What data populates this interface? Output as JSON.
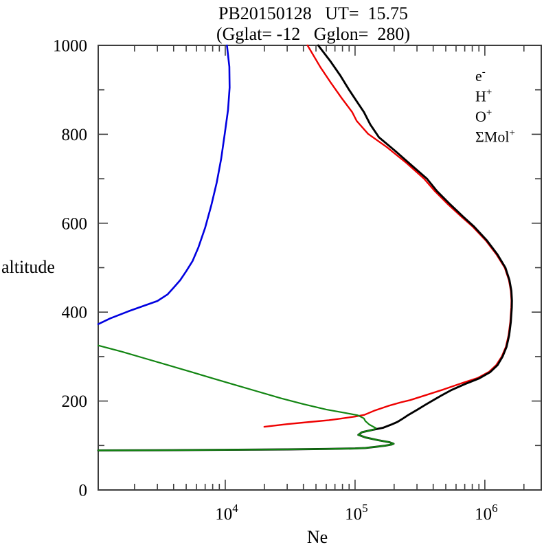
{
  "chart_data": {
    "type": "line",
    "title": "PB20150128   UT=  15.75",
    "subtitle": "(Gglat= -12   Gglon=  280)",
    "xlabel": "Ne",
    "ylabel": "altitude",
    "x_scale": "log",
    "xlim": [
      1050,
      2720000
    ],
    "ylim": [
      0,
      1000
    ],
    "grid": false,
    "frame_color": "#3c3c3c",
    "x_ticks": [
      {
        "v": 10000,
        "base": "10",
        "exp": "4"
      },
      {
        "v": 100000,
        "base": "10",
        "exp": "5"
      },
      {
        "v": 1000000,
        "base": "10",
        "exp": "6"
      }
    ],
    "y_ticks": [
      {
        "v": 0,
        "label": "0"
      },
      {
        "v": 200,
        "label": "200"
      },
      {
        "v": 400,
        "label": "400"
      },
      {
        "v": 600,
        "label": "600"
      },
      {
        "v": 800,
        "label": "800"
      },
      {
        "v": 1000,
        "label": "1000"
      }
    ],
    "y_minor_step": 100,
    "legend": {
      "position": "top-right",
      "entries": [
        {
          "id": "electron",
          "label": "e",
          "sup": "-",
          "color": "#000000"
        },
        {
          "id": "h-plus",
          "label": "H",
          "sup": "+",
          "color": "#0000e0"
        },
        {
          "id": "o-plus",
          "label": "O",
          "sup": "+",
          "color": "#ee0000"
        },
        {
          "id": "mol-ions",
          "label": "ΣMol",
          "sup": "+",
          "color": "#128512"
        }
      ]
    },
    "series": [
      {
        "id": "o-plus",
        "name": "O+",
        "color": "#ee0000",
        "width": 2.4,
        "points": [
          [
            20000,
            142
          ],
          [
            30000,
            148
          ],
          [
            45000,
            153
          ],
          [
            63000,
            157
          ],
          [
            80000,
            161
          ],
          [
            100000,
            165
          ],
          [
            118000,
            169
          ],
          [
            140000,
            178
          ],
          [
            180000,
            189
          ],
          [
            225000,
            197
          ],
          [
            265000,
            202
          ],
          [
            340000,
            212
          ],
          [
            480000,
            226
          ],
          [
            660000,
            240
          ],
          [
            880000,
            252
          ],
          [
            1080000,
            266
          ],
          [
            1225000,
            281
          ],
          [
            1350000,
            300
          ],
          [
            1452000,
            322
          ],
          [
            1522000,
            348
          ],
          [
            1570000,
            378
          ],
          [
            1597000,
            410
          ],
          [
            1602000,
            426
          ],
          [
            1585000,
            448
          ],
          [
            1533000,
            472
          ],
          [
            1422000,
            500
          ],
          [
            1228000,
            530
          ],
          [
            1018000,
            561
          ],
          [
            808000,
            592
          ],
          [
            658000,
            615
          ],
          [
            522000,
            642
          ],
          [
            412000,
            672
          ],
          [
            340000,
            700
          ],
          [
            250000,
            735
          ],
          [
            176000,
            771
          ],
          [
            126000,
            801
          ],
          [
            103000,
            830
          ],
          [
            95000,
            850
          ],
          [
            79000,
            881
          ],
          [
            65000,
            916
          ],
          [
            54000,
            951
          ],
          [
            43000,
            1000
          ]
        ]
      },
      {
        "id": "electron",
        "name": "e-",
        "color": "#000000",
        "width": 2.9,
        "points": [
          [
            1050,
            89
          ],
          [
            3000,
            89.4
          ],
          [
            10000,
            90.2
          ],
          [
            30000,
            91.2
          ],
          [
            60000,
            92.2
          ],
          [
            100000,
            93.3
          ],
          [
            120000,
            94.5
          ],
          [
            145000,
            97
          ],
          [
            170000,
            99.5
          ],
          [
            190000,
            102
          ],
          [
            198000,
            104
          ],
          [
            183000,
            107.5
          ],
          [
            150000,
            112
          ],
          [
            121000,
            118
          ],
          [
            106000,
            124
          ],
          [
            113000,
            130
          ],
          [
            138000,
            135.5
          ],
          [
            165000,
            140
          ],
          [
            190000,
            147
          ],
          [
            212000,
            153
          ],
          [
            235000,
            161
          ],
          [
            258000,
            169
          ],
          [
            300000,
            180
          ],
          [
            350000,
            192
          ],
          [
            390000,
            200
          ],
          [
            460000,
            212
          ],
          [
            555000,
            225
          ],
          [
            700000,
            238
          ],
          [
            905000,
            251
          ],
          [
            1100000,
            265
          ],
          [
            1255000,
            281
          ],
          [
            1370000,
            300
          ],
          [
            1470000,
            322
          ],
          [
            1540000,
            348
          ],
          [
            1585000,
            378
          ],
          [
            1612000,
            410
          ],
          [
            1617000,
            426
          ],
          [
            1600000,
            448
          ],
          [
            1548000,
            472
          ],
          [
            1440000,
            500
          ],
          [
            1248000,
            530
          ],
          [
            1038000,
            561
          ],
          [
            828000,
            592
          ],
          [
            678000,
            615
          ],
          [
            542000,
            642
          ],
          [
            428000,
            672
          ],
          [
            358000,
            700
          ],
          [
            268000,
            732
          ],
          [
            203000,
            763
          ],
          [
            153000,
            793
          ],
          [
            131000,
            822
          ],
          [
            117000,
            850
          ],
          [
            102000,
            876
          ],
          [
            89000,
            902
          ],
          [
            77000,
            932
          ],
          [
            65000,
            963
          ],
          [
            52000,
            1000
          ]
        ]
      },
      {
        "id": "h-plus",
        "name": "H+",
        "color": "#0000e0",
        "width": 2.6,
        "points": [
          [
            1050,
            373
          ],
          [
            1300,
            386
          ],
          [
            1800,
            402
          ],
          [
            2400,
            415
          ],
          [
            3000,
            425
          ],
          [
            3600,
            440
          ],
          [
            4000,
            455
          ],
          [
            4500,
            472
          ],
          [
            5000,
            492
          ],
          [
            5600,
            515
          ],
          [
            6200,
            545
          ],
          [
            7000,
            590
          ],
          [
            7800,
            640
          ],
          [
            8600,
            692
          ],
          [
            9300,
            745
          ],
          [
            9900,
            800
          ],
          [
            10500,
            855
          ],
          [
            10800,
            905
          ],
          [
            10750,
            952
          ],
          [
            10300,
            1000
          ]
        ]
      },
      {
        "id": "mol-ions",
        "name": "Sum Mol+",
        "color": "#128512",
        "width": 2.2,
        "points": [
          [
            1050,
            325
          ],
          [
            1600,
            311
          ],
          [
            2400,
            296
          ],
          [
            3600,
            281
          ],
          [
            5400,
            266
          ],
          [
            8000,
            251
          ],
          [
            12000,
            236
          ],
          [
            18000,
            221
          ],
          [
            27000,
            206
          ],
          [
            40000,
            193
          ],
          [
            60000,
            181
          ],
          [
            85000,
            173
          ],
          [
            105000,
            168
          ],
          [
            117000,
            161
          ],
          [
            120000,
            155
          ],
          [
            129000,
            147
          ],
          [
            145000,
            139
          ],
          [
            138000,
            135.5
          ],
          [
            113000,
            130
          ],
          [
            106000,
            124
          ],
          [
            121000,
            118
          ],
          [
            150000,
            112
          ],
          [
            183000,
            107.5
          ],
          [
            198000,
            104
          ],
          [
            190000,
            102
          ],
          [
            170000,
            99.5
          ],
          [
            145000,
            97
          ],
          [
            120000,
            94.5
          ],
          [
            100000,
            93.3
          ],
          [
            60000,
            92.2
          ],
          [
            30000,
            91.2
          ],
          [
            10000,
            90.2
          ],
          [
            3000,
            89.4
          ],
          [
            1050,
            89
          ]
        ]
      }
    ]
  }
}
